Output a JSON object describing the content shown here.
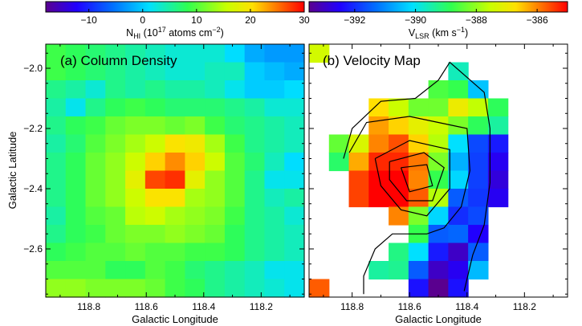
{
  "chart_data": [
    {
      "type": "heatmap",
      "panel_label": "(a) Column Density",
      "xlabel": "Galactic Longitude",
      "ylabel": "Galactic Latitude",
      "xlim": [
        118.95,
        118.05
      ],
      "ylim": [
        -2.76,
        -1.92
      ],
      "xticks": [
        118.8,
        118.6,
        118.4,
        118.2
      ],
      "xticklabels": [
        "118.8",
        "118.6",
        "118.4",
        "118.2"
      ],
      "yticks": [
        -2.0,
        -2.2,
        -2.4,
        -2.6
      ],
      "yticklabels": [
        "−2.0",
        "−2.2",
        "−2.4",
        "−2.6"
      ],
      "colorbar": {
        "label": "N_HI (10^17 atoms cm^-2)",
        "label_parts": {
          "base": "N",
          "sub": "HI",
          "pre_exp": " (10",
          "exp1": "17",
          "mid": " atoms cm",
          "exp2": "−2",
          "end": ")"
        },
        "range": [
          -18,
          30
        ],
        "ticks": [
          -10,
          0,
          10,
          20,
          30
        ],
        "ticklabels": [
          "−10",
          "0",
          "10",
          "20",
          "30"
        ]
      },
      "grid": {
        "rows": 14,
        "cols": 13
      },
      "values": [
        [
          9,
          8,
          7,
          6,
          5,
          4,
          3,
          3,
          3,
          1,
          -2,
          -3,
          -3
        ],
        [
          9,
          8,
          7,
          6,
          5,
          4,
          3,
          3,
          4,
          4,
          0,
          -1,
          -2
        ],
        [
          6,
          5,
          3,
          6,
          5,
          6,
          5,
          5,
          4,
          2,
          0,
          0,
          1
        ],
        [
          5,
          2,
          6,
          8,
          9,
          8,
          7,
          7,
          7,
          6,
          5,
          3,
          3
        ],
        [
          6,
          8,
          9,
          11,
          12,
          12,
          11,
          12,
          9,
          7,
          6,
          5,
          4
        ],
        [
          5,
          7,
          10,
          12,
          14,
          16,
          20,
          19,
          14,
          9,
          6,
          5,
          4
        ],
        [
          6,
          8,
          11,
          13,
          16,
          21,
          24,
          21,
          16,
          10,
          7,
          4,
          1
        ],
        [
          6,
          8,
          11,
          13,
          18,
          27,
          28,
          18,
          13,
          10,
          6,
          2,
          2
        ],
        [
          6,
          8,
          11,
          13,
          16,
          20,
          20,
          14,
          13,
          10,
          6,
          4,
          5
        ],
        [
          5,
          8,
          10,
          11,
          15,
          16,
          14,
          13,
          12,
          9,
          6,
          5,
          3
        ],
        [
          6,
          8,
          9,
          11,
          12,
          12,
          13,
          12,
          11,
          8,
          6,
          5,
          4
        ],
        [
          8,
          9,
          10,
          10,
          11,
          10,
          10,
          9,
          9,
          8,
          6,
          5,
          4
        ],
        [
          10,
          10,
          10,
          8,
          8,
          10,
          9,
          7,
          6,
          5,
          4,
          2,
          2
        ],
        [
          13,
          13,
          12,
          12,
          12,
          11,
          9,
          8,
          6,
          5,
          4,
          3,
          2
        ]
      ]
    },
    {
      "type": "heatmap",
      "panel_label": "(b) Velocity Map",
      "xlabel": "Galactic Longitude",
      "ylabel": "",
      "xlim": [
        118.95,
        118.05
      ],
      "ylim": [
        -2.76,
        -1.92
      ],
      "xticks": [
        118.8,
        118.6,
        118.4,
        118.2
      ],
      "xticklabels": [
        "118.8",
        "118.6",
        "118.4",
        "118.2"
      ],
      "colorbar": {
        "label": "V_LSR (km s^-1)",
        "label_parts": {
          "base": "V",
          "sub": "LSR",
          "mid": " (km s",
          "exp2": "−1",
          "end": ")"
        },
        "range": [
          -393.5,
          -385
        ],
        "ticks": [
          -392,
          -390,
          -388,
          -386
        ],
        "ticklabels": [
          "−392",
          "−390",
          "−388",
          "−386"
        ]
      },
      "grid": {
        "rows": 14,
        "cols": 13
      },
      "values": [
        [
          -387.4,
          null,
          null,
          null,
          null,
          null,
          null,
          null,
          null,
          null,
          null,
          null,
          null
        ],
        [
          null,
          null,
          null,
          null,
          null,
          null,
          null,
          -389.6,
          null,
          null,
          null,
          null,
          null
        ],
        [
          null,
          null,
          null,
          null,
          null,
          null,
          -388.6,
          -388.8,
          -390.4,
          null,
          null,
          null,
          null
        ],
        [
          null,
          null,
          null,
          -386.7,
          -387.5,
          -388.3,
          -388.3,
          -387.0,
          -387.6,
          -388.9,
          null,
          null,
          null
        ],
        [
          null,
          null,
          null,
          -386.2,
          -386.6,
          -387.1,
          -387.5,
          -388.2,
          -388.9,
          -389.4,
          null,
          null,
          null
        ],
        [
          null,
          -388.4,
          -387.3,
          -386.0,
          -385.6,
          -386.6,
          -387.7,
          -390.1,
          -391.7,
          -392.2,
          null,
          null,
          null
        ],
        [
          null,
          -389.0,
          -386.3,
          -385.3,
          -385.3,
          -385.9,
          -388.2,
          -390.6,
          -391.8,
          -392.6,
          null,
          null,
          null
        ],
        [
          null,
          null,
          -385.5,
          -385.0,
          -385.0,
          -386.0,
          -388.8,
          -390.2,
          -391.8,
          -392.8,
          null,
          null,
          null
        ],
        [
          null,
          null,
          -385.5,
          -385.0,
          -385.0,
          -385.7,
          -387.7,
          -391.5,
          -391.9,
          -392.6,
          null,
          null,
          null
        ],
        [
          null,
          null,
          null,
          null,
          -386.0,
          -388.2,
          -390.2,
          -392.0,
          -391.7,
          null,
          null,
          null,
          null
        ],
        [
          null,
          null,
          null,
          null,
          null,
          -388.8,
          -391.5,
          -391.4,
          -392.5,
          null,
          null,
          null,
          null
        ],
        [
          null,
          null,
          null,
          null,
          -389.2,
          -390.1,
          -392.2,
          -393.0,
          -391.5,
          null,
          null,
          null,
          null
        ],
        [
          null,
          null,
          null,
          -389.4,
          -389.3,
          -391.5,
          -393.0,
          -392.6,
          -390.5,
          null,
          null,
          null,
          null
        ],
        [
          -385.7,
          null,
          null,
          null,
          null,
          -392.3,
          -393.5,
          -392.3,
          null,
          null,
          null,
          null,
          null
        ]
      ],
      "contours": [
        [
          [
            118.83,
            -2.3
          ],
          [
            118.8,
            -2.2
          ],
          [
            118.7,
            -2.11
          ],
          [
            118.58,
            -2.1
          ],
          [
            118.5,
            -2.04
          ],
          [
            118.46,
            -1.98
          ],
          [
            118.34,
            -2.08
          ],
          [
            118.32,
            -2.2
          ],
          [
            118.32,
            -2.38
          ],
          [
            118.34,
            -2.52
          ],
          [
            118.38,
            -2.62
          ],
          [
            118.41,
            -2.74
          ]
        ],
        [
          [
            118.81,
            -2.28
          ],
          [
            118.75,
            -2.18
          ],
          [
            118.6,
            -2.16
          ],
          [
            118.5,
            -2.18
          ],
          [
            118.4,
            -2.2
          ],
          [
            118.39,
            -2.34
          ],
          [
            118.42,
            -2.46
          ],
          [
            118.48,
            -2.53
          ],
          [
            118.54,
            -2.55
          ],
          [
            118.66,
            -2.55
          ],
          [
            118.72,
            -2.6
          ],
          [
            118.76,
            -2.69
          ],
          [
            118.76,
            -2.75
          ]
        ],
        [
          [
            118.72,
            -2.3
          ],
          [
            118.6,
            -2.24
          ],
          [
            118.46,
            -2.27
          ],
          [
            118.46,
            -2.4
          ],
          [
            118.54,
            -2.49
          ],
          [
            118.63,
            -2.47
          ],
          [
            118.7,
            -2.39
          ],
          [
            118.72,
            -2.3
          ]
        ],
        [
          [
            118.67,
            -2.31
          ],
          [
            118.55,
            -2.28
          ],
          [
            118.48,
            -2.33
          ],
          [
            118.52,
            -2.44
          ],
          [
            118.61,
            -2.44
          ],
          [
            118.67,
            -2.37
          ],
          [
            118.67,
            -2.31
          ]
        ],
        [
          [
            118.63,
            -2.33
          ],
          [
            118.54,
            -2.32
          ],
          [
            118.52,
            -2.39
          ],
          [
            118.6,
            -2.41
          ],
          [
            118.63,
            -2.33
          ]
        ]
      ]
    }
  ]
}
